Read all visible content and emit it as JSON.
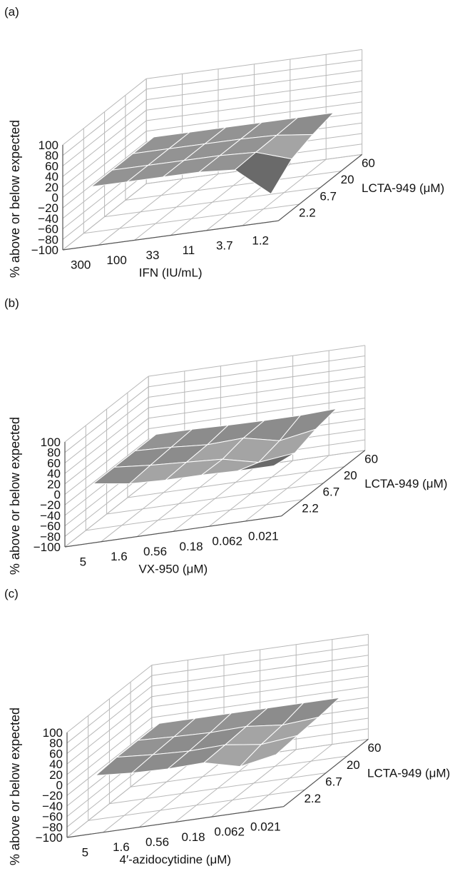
{
  "chart_data": [
    {
      "panel_label": "(a)",
      "type": "surface",
      "zlabel": "% above or below expected",
      "xlabel": "IFN (IU/mL)",
      "ylabel": "LCTA-949 (μM)",
      "x_ticks": [
        "300",
        "100",
        "33",
        "11",
        "3.7",
        "1.2"
      ],
      "y_ticks": [
        "2.2",
        "6.7",
        "20",
        "60"
      ],
      "z_ticks": [
        "100",
        "80",
        "60",
        "40",
        "20",
        "0",
        "−20",
        "−40",
        "−60",
        "−80",
        "−100"
      ],
      "zlim": [
        -100,
        100
      ],
      "grid": true,
      "z_values": [
        [
          0,
          0,
          0,
          0,
          -5,
          -60
        ],
        [
          0,
          0,
          0,
          0,
          -3,
          -25
        ],
        [
          0,
          0,
          0,
          0,
          -2,
          -10
        ],
        [
          0,
          0,
          0,
          0,
          0,
          0
        ]
      ]
    },
    {
      "panel_label": "(b)",
      "type": "surface",
      "zlabel": "% above or below expected",
      "xlabel": "VX-950 (μM)",
      "ylabel": "LCTA-949  (μM)",
      "x_ticks": [
        "5",
        "1.6",
        "0.56",
        "0.18",
        "0.062",
        "0.021"
      ],
      "y_ticks": [
        "2.2",
        "6.7",
        "20",
        "60"
      ],
      "z_ticks": [
        "100",
        "80",
        "60",
        "40",
        "20",
        "0",
        "−20",
        "−40",
        "−60",
        "−80",
        "−100"
      ],
      "zlim": [
        -100,
        100
      ],
      "grid": true,
      "z_values": [
        [
          0,
          -10,
          -13,
          -13,
          -15,
          -15
        ],
        [
          0,
          -6,
          -10,
          -14,
          -30,
          -22
        ],
        [
          0,
          -3,
          -8,
          -5,
          -20,
          -8
        ],
        [
          0,
          0,
          -2,
          -3,
          -3,
          0
        ]
      ]
    },
    {
      "panel_label": "(c)",
      "type": "surface",
      "zlabel": "% above or below expected",
      "xlabel": "4′-azidocytidine (μM)",
      "ylabel": "LCTA-949 (μM)",
      "x_ticks": [
        "5",
        "1.6",
        "0.56",
        "0.18",
        "0.062",
        "0.021"
      ],
      "y_ticks": [
        "2.2",
        "6.7",
        "20",
        "60"
      ],
      "z_ticks": [
        "100",
        "80",
        "60",
        "40",
        "20",
        "0",
        "−20",
        "−40",
        "−60",
        "−80",
        "−100"
      ],
      "zlim": [
        -100,
        100
      ],
      "grid": true,
      "z_values": [
        [
          -3,
          -8,
          -10,
          -8,
          -25,
          -12
        ],
        [
          0,
          -5,
          -8,
          -6,
          -15,
          -8
        ],
        [
          0,
          -3,
          -5,
          -3,
          -10,
          -5
        ],
        [
          0,
          0,
          0,
          0,
          0,
          0
        ]
      ]
    }
  ]
}
